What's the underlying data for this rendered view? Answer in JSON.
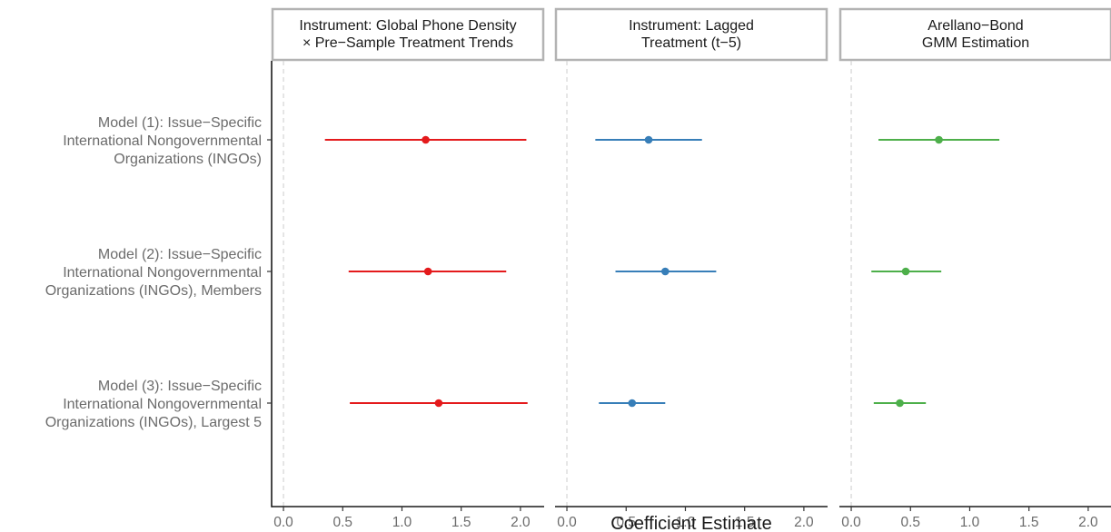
{
  "chart_data": {
    "type": "scatter",
    "subtype": "coefficient-plot-with-confidence-intervals",
    "xlabel": "Coefficient Estimate",
    "xlim": [
      -0.1,
      2.2
    ],
    "xticks": [
      0.0,
      0.5,
      1.0,
      1.5,
      2.0
    ],
    "xtick_labels": [
      "0.0",
      "0.5",
      "1.0",
      "1.5",
      "2.0"
    ],
    "reference_line": 0,
    "grid": false,
    "legend": "none",
    "rows": [
      {
        "id": "m1",
        "label_lines": [
          "Model (1): Issue−Specific",
          "International Nongovernmental",
          "Organizations (INGOs)"
        ]
      },
      {
        "id": "m2",
        "label_lines": [
          "Model (2): Issue−Specific",
          "International Nongovernmental",
          "Organizations (INGOs), Members"
        ]
      },
      {
        "id": "m3",
        "label_lines": [
          "Model (3): Issue−Specific",
          "International Nongovernmental",
          "Organizations (INGOs), Largest 5"
        ]
      }
    ],
    "panels": [
      {
        "title_lines": [
          "Instrument: Global Phone Density",
          "× Pre−Sample Treatment Trends"
        ],
        "color": "#e41a1c",
        "estimates": [
          {
            "model": "m1",
            "estimate": 1.2,
            "lower": 0.35,
            "upper": 2.05
          },
          {
            "model": "m2",
            "estimate": 1.22,
            "lower": 0.55,
            "upper": 1.88
          },
          {
            "model": "m3",
            "estimate": 1.31,
            "lower": 0.56,
            "upper": 2.06
          }
        ]
      },
      {
        "title_lines": [
          "Instrument: Lagged",
          "Treatment (t−5)"
        ],
        "color": "#377eb8",
        "estimates": [
          {
            "model": "m1",
            "estimate": 0.69,
            "lower": 0.24,
            "upper": 1.14
          },
          {
            "model": "m2",
            "estimate": 0.83,
            "lower": 0.41,
            "upper": 1.26
          },
          {
            "model": "m3",
            "estimate": 0.55,
            "lower": 0.27,
            "upper": 0.83
          }
        ]
      },
      {
        "title_lines": [
          "Arellano−Bond",
          "GMM Estimation"
        ],
        "color": "#4daf4a",
        "estimates": [
          {
            "model": "m1",
            "estimate": 0.74,
            "lower": 0.23,
            "upper": 1.25
          },
          {
            "model": "m2",
            "estimate": 0.46,
            "lower": 0.17,
            "upper": 0.76
          },
          {
            "model": "m3",
            "estimate": 0.41,
            "lower": 0.19,
            "upper": 0.63
          }
        ]
      }
    ]
  }
}
